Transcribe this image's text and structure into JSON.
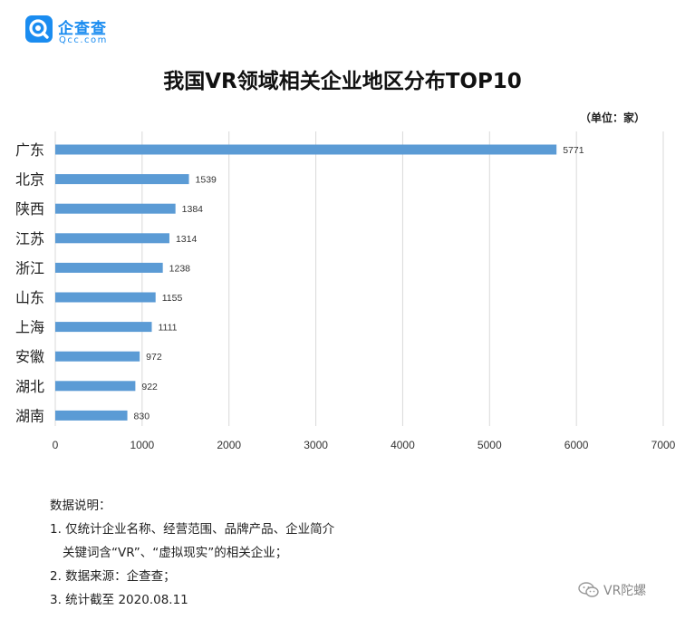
{
  "brand": {
    "name": "企查查",
    "domain": "Qcc.com",
    "logo_icon": "qcc-magnifier-logo-icon",
    "color": "#1a8cf0"
  },
  "unit_note": "（单位：家）",
  "notes": {
    "heading": "数据说明：",
    "line1": "1. 仅统计企业名称、经营范围、品牌产品、企业简介",
    "line1_cont": "关键词含“VR”、“虚拟现实”的相关企业；",
    "line2": "2. 数据来源：企查查；",
    "line3": "3. 统计截至 2020.08.11"
  },
  "watermark": {
    "text": "VR陀螺",
    "icon": "wechat-chat-bubble-icon"
  },
  "chart_data": {
    "type": "bar",
    "orientation": "horizontal",
    "title": "我国VR领域相关企业地区分布TOP10",
    "categories": [
      "广东",
      "北京",
      "陕西",
      "江苏",
      "浙江",
      "山东",
      "上海",
      "安徽",
      "湖北",
      "湖南"
    ],
    "values": [
      5771,
      1539,
      1384,
      1314,
      1238,
      1155,
      1111,
      972,
      922,
      830
    ],
    "xlim": [
      0,
      7000
    ],
    "xticks": [
      0,
      1000,
      2000,
      3000,
      4000,
      5000,
      6000,
      7000
    ],
    "grid": true,
    "bar_color": "#5b9bd5",
    "data_labels": true
  }
}
